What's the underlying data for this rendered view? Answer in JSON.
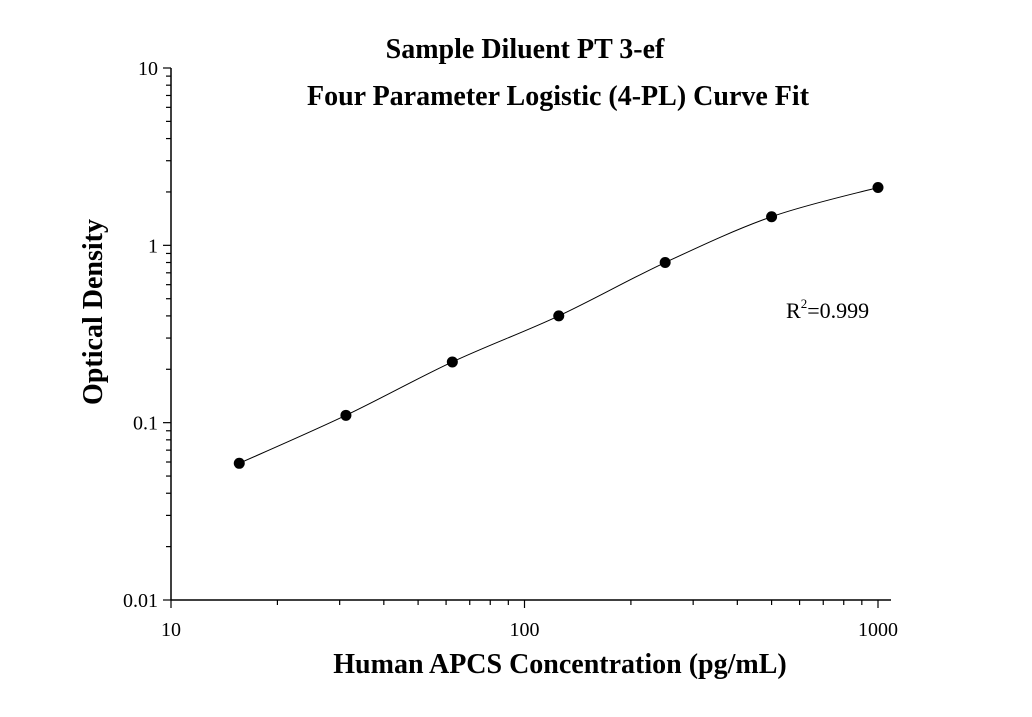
{
  "chart_data": {
    "type": "scatter",
    "title": "Sample Diluent PT 3-ef",
    "subtitle": "Four Parameter Logistic (4-PL) Curve Fit",
    "xlabel": "Human APCS Concentration (pg/mL)",
    "ylabel": "Optical Density",
    "xscale": "log",
    "yscale": "log",
    "xlim": [
      10,
      1000
    ],
    "ylim": [
      0.01,
      10
    ],
    "xticks": [
      "10",
      "100",
      "1000"
    ],
    "yticks": [
      "0.01",
      "0.1",
      "1",
      "10"
    ],
    "grid": false,
    "legend": "none",
    "series": [
      {
        "x": [
          15.6,
          31.25,
          62.5,
          125,
          250,
          500,
          1000
        ],
        "y": [
          0.059,
          0.11,
          0.22,
          0.4,
          0.8,
          1.45,
          2.12
        ]
      }
    ],
    "fit": {
      "type": "4-PL",
      "r2_base": "R",
      "r2_exp": "2",
      "r2_value": "=0.999"
    }
  }
}
